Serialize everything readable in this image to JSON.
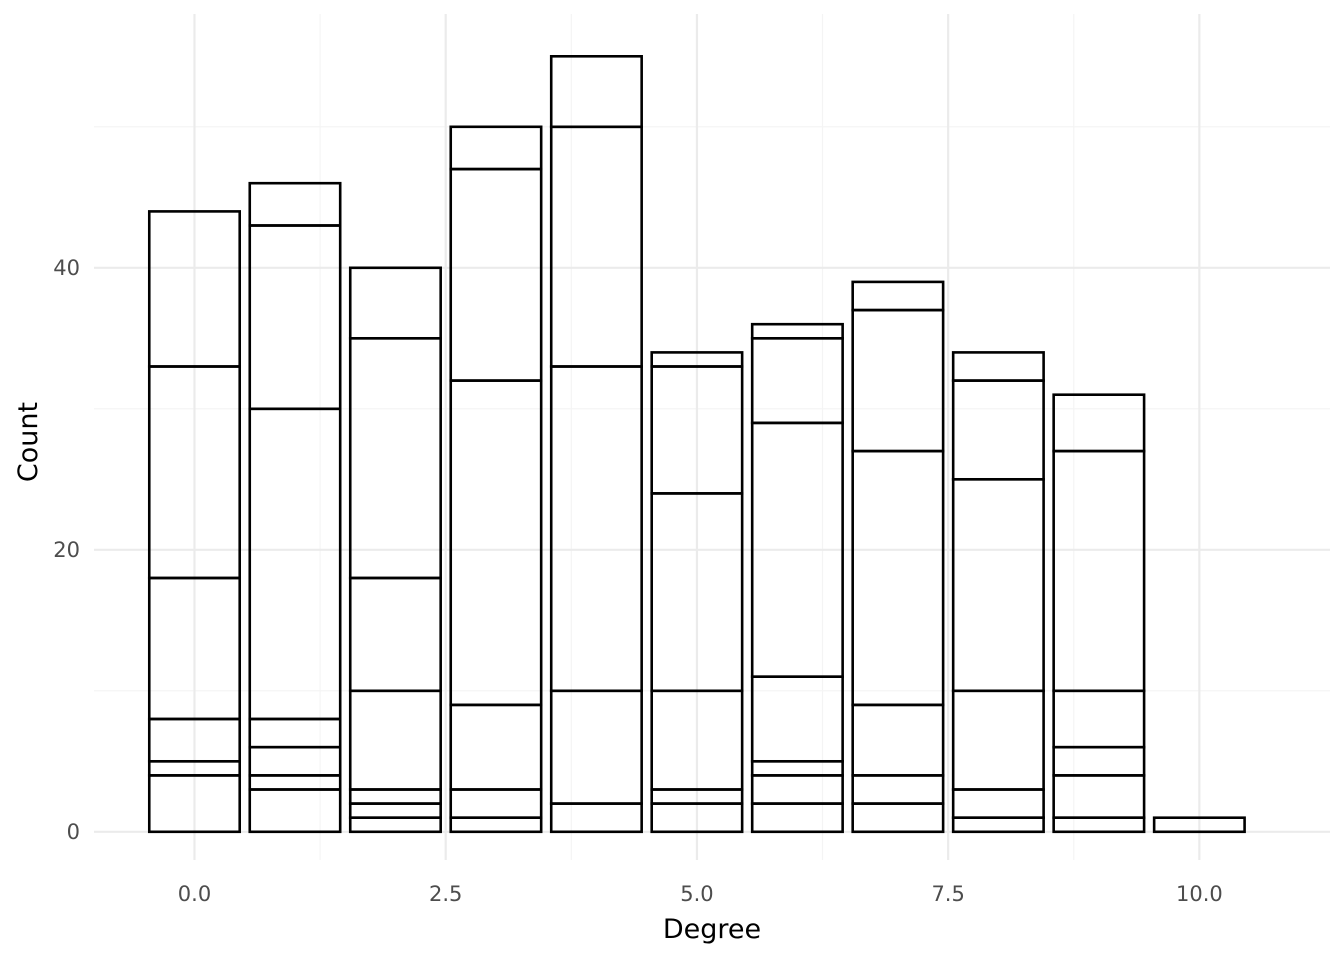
{
  "chart_data": {
    "type": "bar",
    "stacked": true,
    "xlabel": "Degree",
    "ylabel": "Count",
    "xlim": [
      -1,
      11.3
    ],
    "ylim": [
      -2,
      58
    ],
    "x_ticks": [
      0,
      2.5,
      5,
      7.5,
      10
    ],
    "x_tick_labels": [
      "0.0",
      "2.5",
      "5.0",
      "7.5",
      "10.0"
    ],
    "y_ticks": [
      0,
      20,
      40
    ],
    "y_tick_labels": [
      "0",
      "20",
      "40"
    ],
    "grid": true,
    "legend": "none",
    "bar_fill": "#ffffff",
    "bar_outline": "#000000",
    "bars": [
      {
        "x": 0,
        "total": 44,
        "segment_tops": [
          4,
          5,
          8,
          18,
          33,
          44
        ]
      },
      {
        "x": 1,
        "total": 46,
        "segment_tops": [
          3,
          4,
          6,
          8,
          30,
          43,
          46
        ]
      },
      {
        "x": 2,
        "total": 40,
        "segment_tops": [
          1,
          2,
          3,
          10,
          18,
          35,
          40
        ]
      },
      {
        "x": 3,
        "total": 50,
        "segment_tops": [
          1,
          3,
          9,
          32,
          47,
          50
        ]
      },
      {
        "x": 4,
        "total": 55,
        "segment_tops": [
          2,
          10,
          33,
          50,
          55
        ]
      },
      {
        "x": 5,
        "total": 34,
        "segment_tops": [
          2,
          3,
          10,
          24,
          33,
          34
        ]
      },
      {
        "x": 6,
        "total": 36,
        "segment_tops": [
          2,
          4,
          5,
          11,
          29,
          35,
          36
        ]
      },
      {
        "x": 7,
        "total": 39,
        "segment_tops": [
          2,
          4,
          9,
          27,
          37,
          39
        ]
      },
      {
        "x": 8,
        "total": 34,
        "segment_tops": [
          1,
          3,
          10,
          25,
          32,
          34
        ]
      },
      {
        "x": 9,
        "total": 31,
        "segment_tops": [
          1,
          4,
          6,
          10,
          27,
          31
        ]
      },
      {
        "x": 10,
        "total": 1,
        "segment_tops": [
          1
        ]
      }
    ]
  }
}
